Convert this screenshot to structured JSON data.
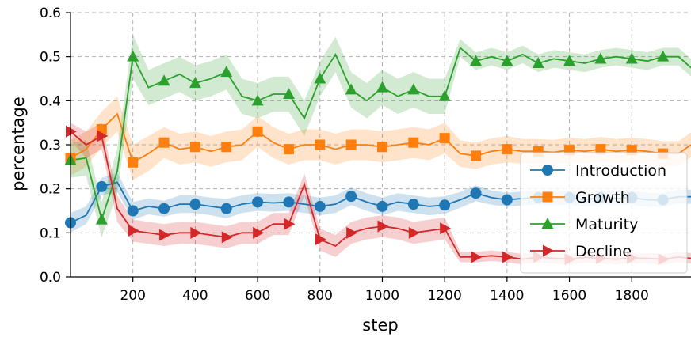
{
  "chart_data": {
    "type": "line",
    "xlabel": "step",
    "ylabel": "percentage",
    "xlim": [
      0,
      1990
    ],
    "ylim": [
      0,
      0.6
    ],
    "xticks": [
      200,
      400,
      600,
      800,
      1000,
      1200,
      1400,
      1600,
      1800
    ],
    "xtick_labels": [
      "200",
      "400",
      "600",
      "800",
      "1000",
      "1200",
      "1400",
      "1600",
      "1800"
    ],
    "yticks": [
      0.0,
      0.1,
      0.2,
      0.3,
      0.4,
      0.5,
      0.6
    ],
    "ytick_labels": [
      "0.0",
      "0.1",
      "0.2",
      "0.3",
      "0.4",
      "0.5",
      "0.6"
    ],
    "grid": true,
    "legend_position": "lower-right",
    "x": [
      0,
      50,
      100,
      150,
      200,
      250,
      300,
      350,
      400,
      450,
      500,
      550,
      600,
      650,
      700,
      750,
      800,
      850,
      900,
      950,
      1000,
      1050,
      1100,
      1150,
      1200,
      1250,
      1300,
      1350,
      1400,
      1450,
      1500,
      1550,
      1600,
      1650,
      1700,
      1750,
      1800,
      1850,
      1900,
      1950,
      1990
    ],
    "series": [
      {
        "name": "Introduction",
        "color": "#1f77b4",
        "marker": "circle",
        "values": [
          0.123,
          0.14,
          0.205,
          0.215,
          0.15,
          0.16,
          0.155,
          0.165,
          0.165,
          0.16,
          0.155,
          0.165,
          0.17,
          0.168,
          0.17,
          0.165,
          0.16,
          0.165,
          0.183,
          0.17,
          0.16,
          0.17,
          0.165,
          0.16,
          0.163,
          0.175,
          0.19,
          0.18,
          0.175,
          0.178,
          0.18,
          0.178,
          0.18,
          0.175,
          0.18,
          0.178,
          0.18,
          0.175,
          0.175,
          0.182,
          0.182
        ],
        "band": [
          0.022,
          0.02,
          0.02,
          0.022,
          0.02,
          0.018,
          0.018,
          0.02,
          0.02,
          0.02,
          0.022,
          0.02,
          0.02,
          0.02,
          0.02,
          0.02,
          0.02,
          0.02,
          0.02,
          0.02,
          0.02,
          0.02,
          0.02,
          0.02,
          0.02,
          0.018,
          0.018,
          0.016,
          0.016,
          0.016,
          0.016,
          0.016,
          0.016,
          0.016,
          0.016,
          0.016,
          0.016,
          0.016,
          0.016,
          0.016,
          0.016
        ]
      },
      {
        "name": "Growth",
        "color": "#ff7f0e",
        "marker": "square",
        "values": [
          0.27,
          0.29,
          0.335,
          0.37,
          0.26,
          0.28,
          0.305,
          0.29,
          0.295,
          0.285,
          0.295,
          0.3,
          0.33,
          0.305,
          0.29,
          0.3,
          0.3,
          0.29,
          0.3,
          0.3,
          0.295,
          0.3,
          0.305,
          0.3,
          0.315,
          0.28,
          0.275,
          0.285,
          0.29,
          0.285,
          0.285,
          0.283,
          0.288,
          0.285,
          0.29,
          0.285,
          0.288,
          0.285,
          0.28,
          0.28,
          0.3
        ],
        "band": [
          0.04,
          0.04,
          0.04,
          0.04,
          0.04,
          0.04,
          0.035,
          0.035,
          0.035,
          0.035,
          0.035,
          0.035,
          0.035,
          0.035,
          0.035,
          0.035,
          0.035,
          0.035,
          0.035,
          0.035,
          0.035,
          0.035,
          0.035,
          0.035,
          0.035,
          0.03,
          0.03,
          0.03,
          0.03,
          0.028,
          0.028,
          0.028,
          0.028,
          0.028,
          0.028,
          0.028,
          0.028,
          0.028,
          0.028,
          0.028,
          0.028
        ]
      },
      {
        "name": "Maturity",
        "color": "#2ca02c",
        "marker": "triangle-up",
        "values": [
          0.265,
          0.27,
          0.13,
          0.24,
          0.5,
          0.43,
          0.445,
          0.46,
          0.44,
          0.45,
          0.465,
          0.41,
          0.4,
          0.415,
          0.415,
          0.36,
          0.45,
          0.505,
          0.425,
          0.4,
          0.43,
          0.41,
          0.425,
          0.41,
          0.41,
          0.52,
          0.49,
          0.5,
          0.49,
          0.505,
          0.485,
          0.495,
          0.49,
          0.485,
          0.495,
          0.5,
          0.495,
          0.49,
          0.5,
          0.5,
          0.475
        ],
        "band": [
          0.04,
          0.04,
          0.04,
          0.05,
          0.05,
          0.04,
          0.04,
          0.04,
          0.04,
          0.04,
          0.04,
          0.04,
          0.04,
          0.04,
          0.04,
          0.04,
          0.04,
          0.04,
          0.04,
          0.04,
          0.04,
          0.04,
          0.04,
          0.04,
          0.04,
          0.02,
          0.02,
          0.02,
          0.02,
          0.02,
          0.02,
          0.02,
          0.02,
          0.02,
          0.02,
          0.02,
          0.02,
          0.02,
          0.02,
          0.02,
          0.02
        ]
      },
      {
        "name": "Decline",
        "color": "#d62728",
        "marker": "triangle-right",
        "values": [
          0.33,
          0.3,
          0.32,
          0.155,
          0.105,
          0.1,
          0.095,
          0.1,
          0.1,
          0.095,
          0.09,
          0.1,
          0.1,
          0.12,
          0.12,
          0.21,
          0.085,
          0.07,
          0.1,
          0.11,
          0.115,
          0.11,
          0.1,
          0.105,
          0.11,
          0.045,
          0.045,
          0.048,
          0.045,
          0.04,
          0.045,
          0.042,
          0.04,
          0.044,
          0.042,
          0.04,
          0.043,
          0.042,
          0.04,
          0.045,
          0.042
        ],
        "band": [
          0.02,
          0.03,
          0.03,
          0.03,
          0.025,
          0.025,
          0.025,
          0.025,
          0.025,
          0.025,
          0.025,
          0.025,
          0.025,
          0.025,
          0.025,
          0.025,
          0.025,
          0.025,
          0.025,
          0.025,
          0.025,
          0.025,
          0.025,
          0.025,
          0.025,
          0.012,
          0.012,
          0.012,
          0.012,
          0.012,
          0.012,
          0.012,
          0.012,
          0.012,
          0.012,
          0.012,
          0.012,
          0.012,
          0.012,
          0.012,
          0.012
        ]
      }
    ],
    "marker_x": [
      0,
      100,
      200,
      300,
      400,
      500,
      600,
      700,
      800,
      900,
      1000,
      1100,
      1200,
      1300,
      1400,
      1500,
      1600,
      1700,
      1800,
      1900
    ]
  }
}
